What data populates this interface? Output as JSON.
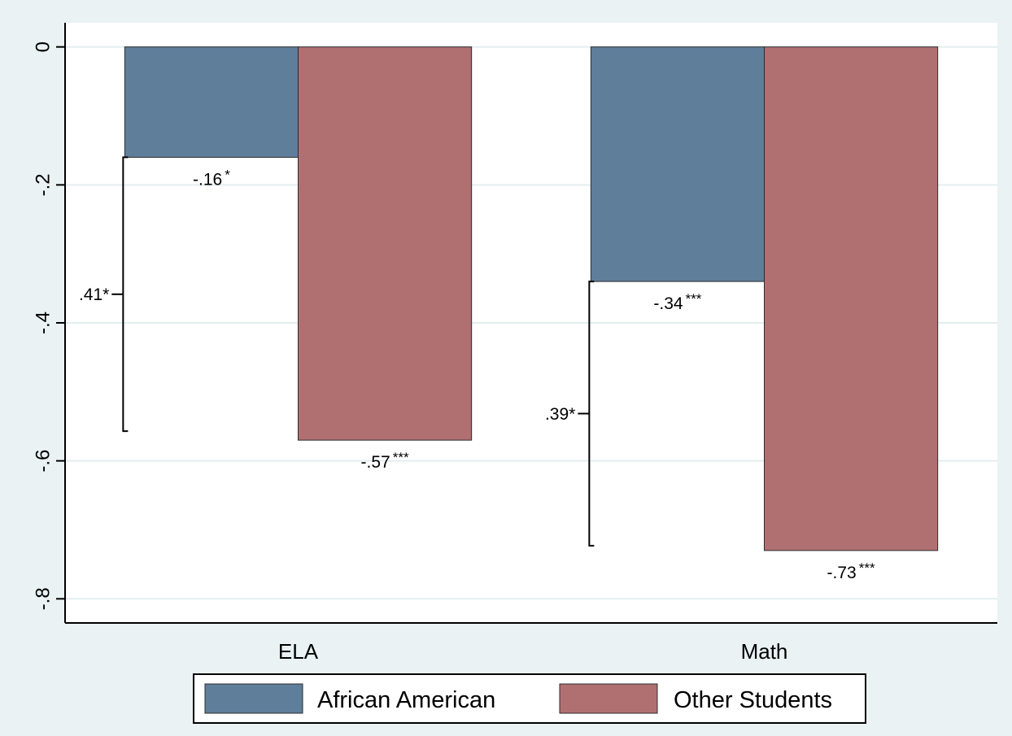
{
  "chart_data": {
    "type": "bar",
    "categories": [
      "ELA",
      "Math"
    ],
    "series": [
      {
        "name": "African American",
        "values": [
          -0.16,
          -0.34
        ],
        "labels": [
          "-.16",
          "-.34"
        ],
        "sig": [
          "*",
          "***"
        ],
        "color": "#5f7e9a"
      },
      {
        "name": "Other Students",
        "values": [
          -0.57,
          -0.73
        ],
        "labels": [
          "-.57",
          "-.73"
        ],
        "sig": [
          "***",
          "***"
        ],
        "color": "#b07072"
      }
    ],
    "differences": [
      {
        "category": "ELA",
        "value": 0.41,
        "label": ".41*",
        "from": -0.16,
        "to": -0.557
      },
      {
        "category": "Math",
        "value": 0.39,
        "label": ".39*",
        "from": -0.34,
        "to": -0.723
      }
    ],
    "yticks": [
      0,
      -0.2,
      -0.4,
      -0.6,
      -0.8
    ],
    "ytick_labels": [
      "0",
      "-.2",
      "-.4",
      "-.6",
      "-.8"
    ],
    "ylim": [
      -0.835,
      0.035
    ],
    "grid": true,
    "legend": "bottom"
  }
}
